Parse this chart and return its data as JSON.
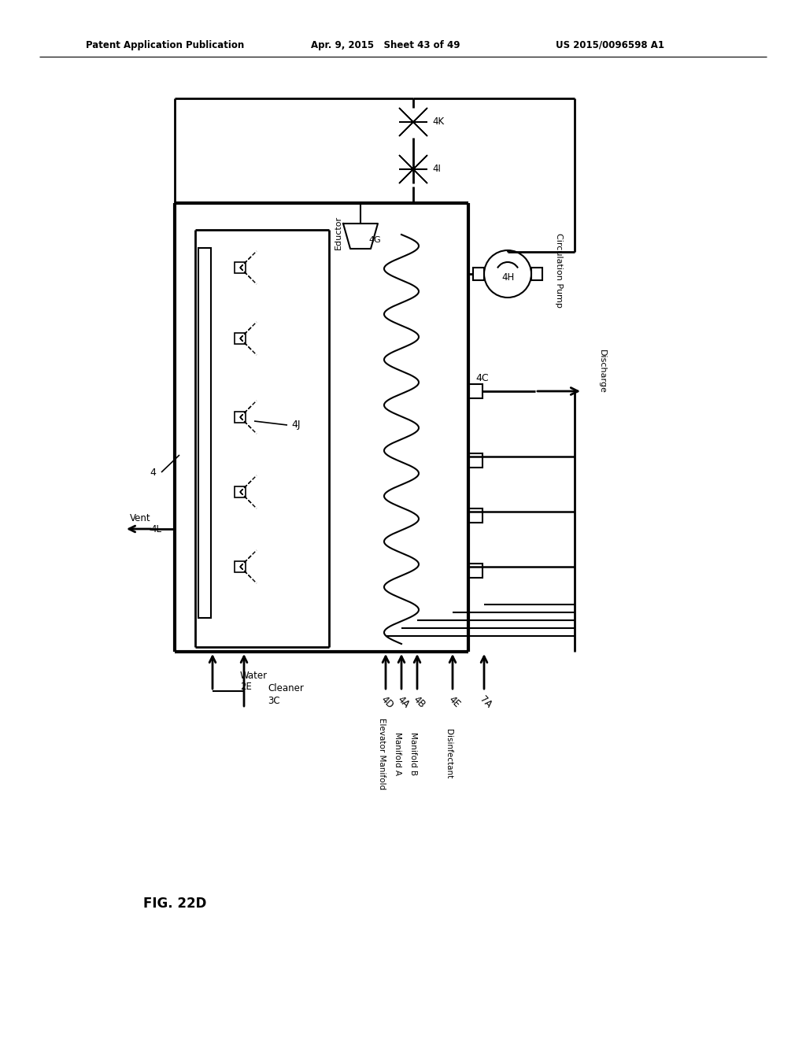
{
  "header_left": "Patent Application Publication",
  "header_mid": "Apr. 9, 2015   Sheet 43 of 49",
  "header_right": "US 2015/0096598 A1",
  "fig_label": "FIG. 22D",
  "bg": "#ffffff"
}
